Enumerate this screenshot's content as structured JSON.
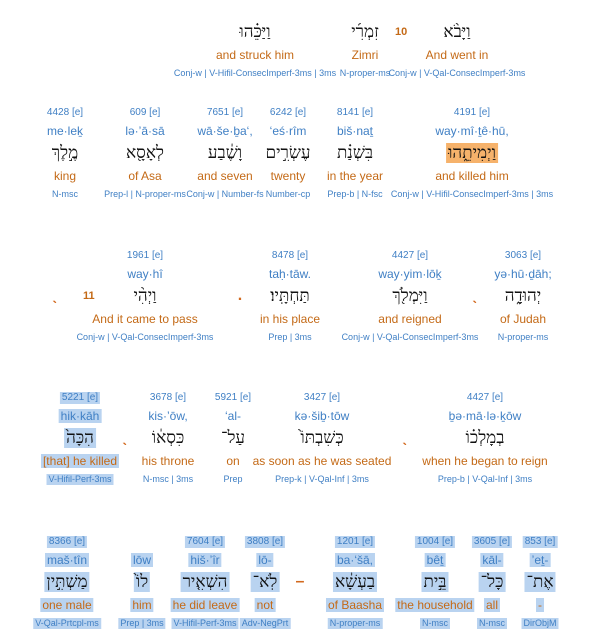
{
  "rows": [
    {
      "words": [
        {
          "verse": "10",
          "hebrew": "וַיָּבֹ֨א",
          "english": "And went in",
          "morph": "Conj-w | V-Qal-ConsecImperf-3ms"
        },
        {
          "hebrew": "זִמְרִ֜י",
          "english": "Zimri",
          "morph": "N-proper-ms"
        },
        {
          "hebrew": "וַיַּכֵּ֗הוּ",
          "english": "and struck him",
          "morph": "Conj-w | V-Hifil-ConsecImperf-3ms | 3ms"
        }
      ]
    },
    {
      "words": [
        {
          "strongs": "4191 [e]",
          "translit": "way·mî·ṯê·hū,",
          "hebrew": "וַיְמִיתֵ֑הוּ",
          "english": "and killed him",
          "morph": "Conj-w | V-Hifil-ConsecImperf-3ms | 3ms",
          "highlight": "#f6b26b"
        },
        {
          "strongs": "8141 [e]",
          "translit": "biš·naṯ",
          "hebrew": "בִּשְׁנַ֗ת",
          "english": "in the year",
          "morph": "Prep-b | N-fsc"
        },
        {
          "strongs": "6242 [e]",
          "translit": "‘eś·rîm",
          "hebrew": "עֶשְׂרִ֣ים",
          "english": "twenty",
          "morph": "Number-cp"
        },
        {
          "strongs": "7651 [e]",
          "translit": "wā·še·ḇa‘,",
          "hebrew": "וָשֶׁ֔בַע",
          "english": "and seven",
          "morph": "Conj-w | Number-fs"
        },
        {
          "strongs": "609 [e]",
          "translit": "lə·’ā·sā",
          "hebrew": "לְאָסָ֖א",
          "english": "of Asa",
          "morph": "Prep-l | N-proper-ms"
        },
        {
          "strongs": "4428 [e]",
          "translit": "me·leḵ",
          "hebrew": "מֶ֣לֶךְ",
          "english": "king",
          "morph": "N-msc"
        }
      ]
    },
    {
      "words": [
        {
          "strongs": "3063 [e]",
          "translit": "yə·hū·ḏāh;",
          "hebrew": "יְהוּדָ֑ה",
          "english": "of Judah",
          "morph": "N-proper-ms"
        },
        {
          "punct": "ˎ"
        },
        {
          "strongs": "4427 [e]",
          "translit": "way·yim·lōḵ",
          "hebrew": "וַיִּמְלֹ֖ךְ",
          "english": "and reigned",
          "morph": "Conj-w | V-Qal-ConsecImperf-3ms"
        },
        {
          "strongs": "8478 [e]",
          "translit": "taḥ·tāw.",
          "hebrew": "תַּחְתָּֽיו׃",
          "english": "in his place",
          "morph": "Prep | 3ms"
        },
        {
          "punct": "."
        },
        {
          "verse": "11",
          "strongs": "1961 [e]",
          "translit": "way·hî",
          "hebrew": "וַיְהִ֨י",
          "english": "And it came to pass",
          "morph": "Conj-w | V-Qal-ConsecImperf-3ms"
        },
        {
          "punct": "ˎ"
        }
      ]
    },
    {
      "words": [
        {
          "strongs": "4427 [e]",
          "translit": "ḇə·mā·lə·ḵōw",
          "hebrew": "בְמָלְכ֗וֹ",
          "english": "when he began to reign",
          "morph": "Prep-b | V-Qal-Inf | 3ms"
        },
        {
          "punct": "ˎ"
        },
        {
          "strongs": "3427 [e]",
          "translit": "kə·šiḇ·tōw",
          "hebrew": "כְּשִׁבְתּוֹ֙",
          "english": "as soon as he was seated",
          "morph": "Prep-k | V-Qal-Inf | 3ms"
        },
        {
          "strongs": "5921 [e]",
          "translit": "‘al-",
          "hebrew": "עַל־",
          "english": "on",
          "morph": "Prep"
        },
        {
          "strongs": "3678 [e]",
          "translit": "kis·’ōw,",
          "hebrew": "כִּסְא֔וֹ",
          "english": "his throne",
          "morph": "N-msc | 3ms"
        },
        {
          "punct": "ˎ"
        },
        {
          "strongs": "5221 [e]",
          "translit": "hik·kāh",
          "hebrew": "הִכָּה֙",
          "english": "[that] he killed",
          "morph": "V-Hifil-Perf-3ms",
          "highlight": "#b9d3f0"
        }
      ]
    },
    {
      "words": [
        {
          "strongs": "853 [e]",
          "translit": "’eṯ-",
          "hebrew": "אֶת־",
          "english": "-",
          "morph": "DirObjM",
          "highlight": "#b9d3f0"
        },
        {
          "strongs": "3605 [e]",
          "translit": "kāl-",
          "hebrew": "כָּל־",
          "english": "all",
          "morph": "N-msc",
          "highlight": "#b9d3f0"
        },
        {
          "strongs": "1004 [e]",
          "translit": "bêṯ",
          "hebrew": "בֵּ֣ית",
          "english": "the household",
          "morph": "N-msc",
          "highlight": "#b9d3f0"
        },
        {
          "strongs": "1201 [e]",
          "translit": "ba·‘šā,",
          "hebrew": "בַעְשָׁ֔א",
          "english": "of Baasha",
          "morph": "N-proper-ms",
          "highlight": "#b9d3f0"
        },
        {
          "punct": "–"
        },
        {
          "strongs": "3808 [e]",
          "translit": "lō-",
          "hebrew": "לֹֽא־",
          "english": "not",
          "morph": "Adv-NegPrt",
          "highlight": "#b9d3f0"
        },
        {
          "strongs": "7604 [e]",
          "translit": "hiš·’îr",
          "hebrew": "הִשְׁאִ֤יר",
          "english": "he did leave",
          "morph": "V-Hifil-Perf-3ms",
          "highlight": "#b9d3f0"
        },
        {
          "translit": "lōw",
          "hebrew": "לוֹ֙",
          "english": "him",
          "morph": "Prep | 3ms",
          "highlight": "#b9d3f0"
        },
        {
          "strongs": "8366 [e]",
          "translit": "maš·tîn",
          "hebrew": "מַשְׁתִּ֣ין",
          "english": "one male",
          "morph": "V-Qal-Prtcpl-ms",
          "highlight": "#b9d3f0"
        }
      ]
    }
  ]
}
